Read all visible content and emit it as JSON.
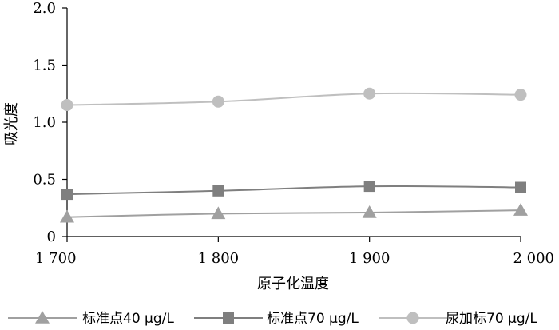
{
  "chart_data": {
    "type": "line",
    "title": "",
    "xlabel": "原子化温度",
    "ylabel": "吸光度",
    "x": [
      1700,
      1800,
      1900,
      2000
    ],
    "x_tick_labels": [
      "1 700",
      "1 800",
      "1 900",
      "2 000"
    ],
    "xlim": [
      1700,
      2000
    ],
    "ylim": [
      0,
      2.0
    ],
    "y_ticks": [
      0,
      0.5,
      1.0,
      1.5,
      2.0
    ],
    "y_tick_labels": [
      "0",
      "0.5",
      "1.0",
      "1.5",
      "2.0"
    ],
    "grid": false,
    "legend_position": "bottom",
    "series": [
      {
        "name": "标准点40 μg/L",
        "marker": "triangle",
        "color": "#a0a0a0",
        "values": [
          0.17,
          0.2,
          0.21,
          0.23
        ]
      },
      {
        "name": "标准点70 μg/L",
        "marker": "square",
        "color": "#7f7f7f",
        "values": [
          0.37,
          0.4,
          0.44,
          0.43
        ]
      },
      {
        "name": "尿加标70 μg/L",
        "marker": "circle",
        "color": "#bfbfbf",
        "values": [
          1.15,
          1.18,
          1.25,
          1.24
        ]
      }
    ]
  }
}
